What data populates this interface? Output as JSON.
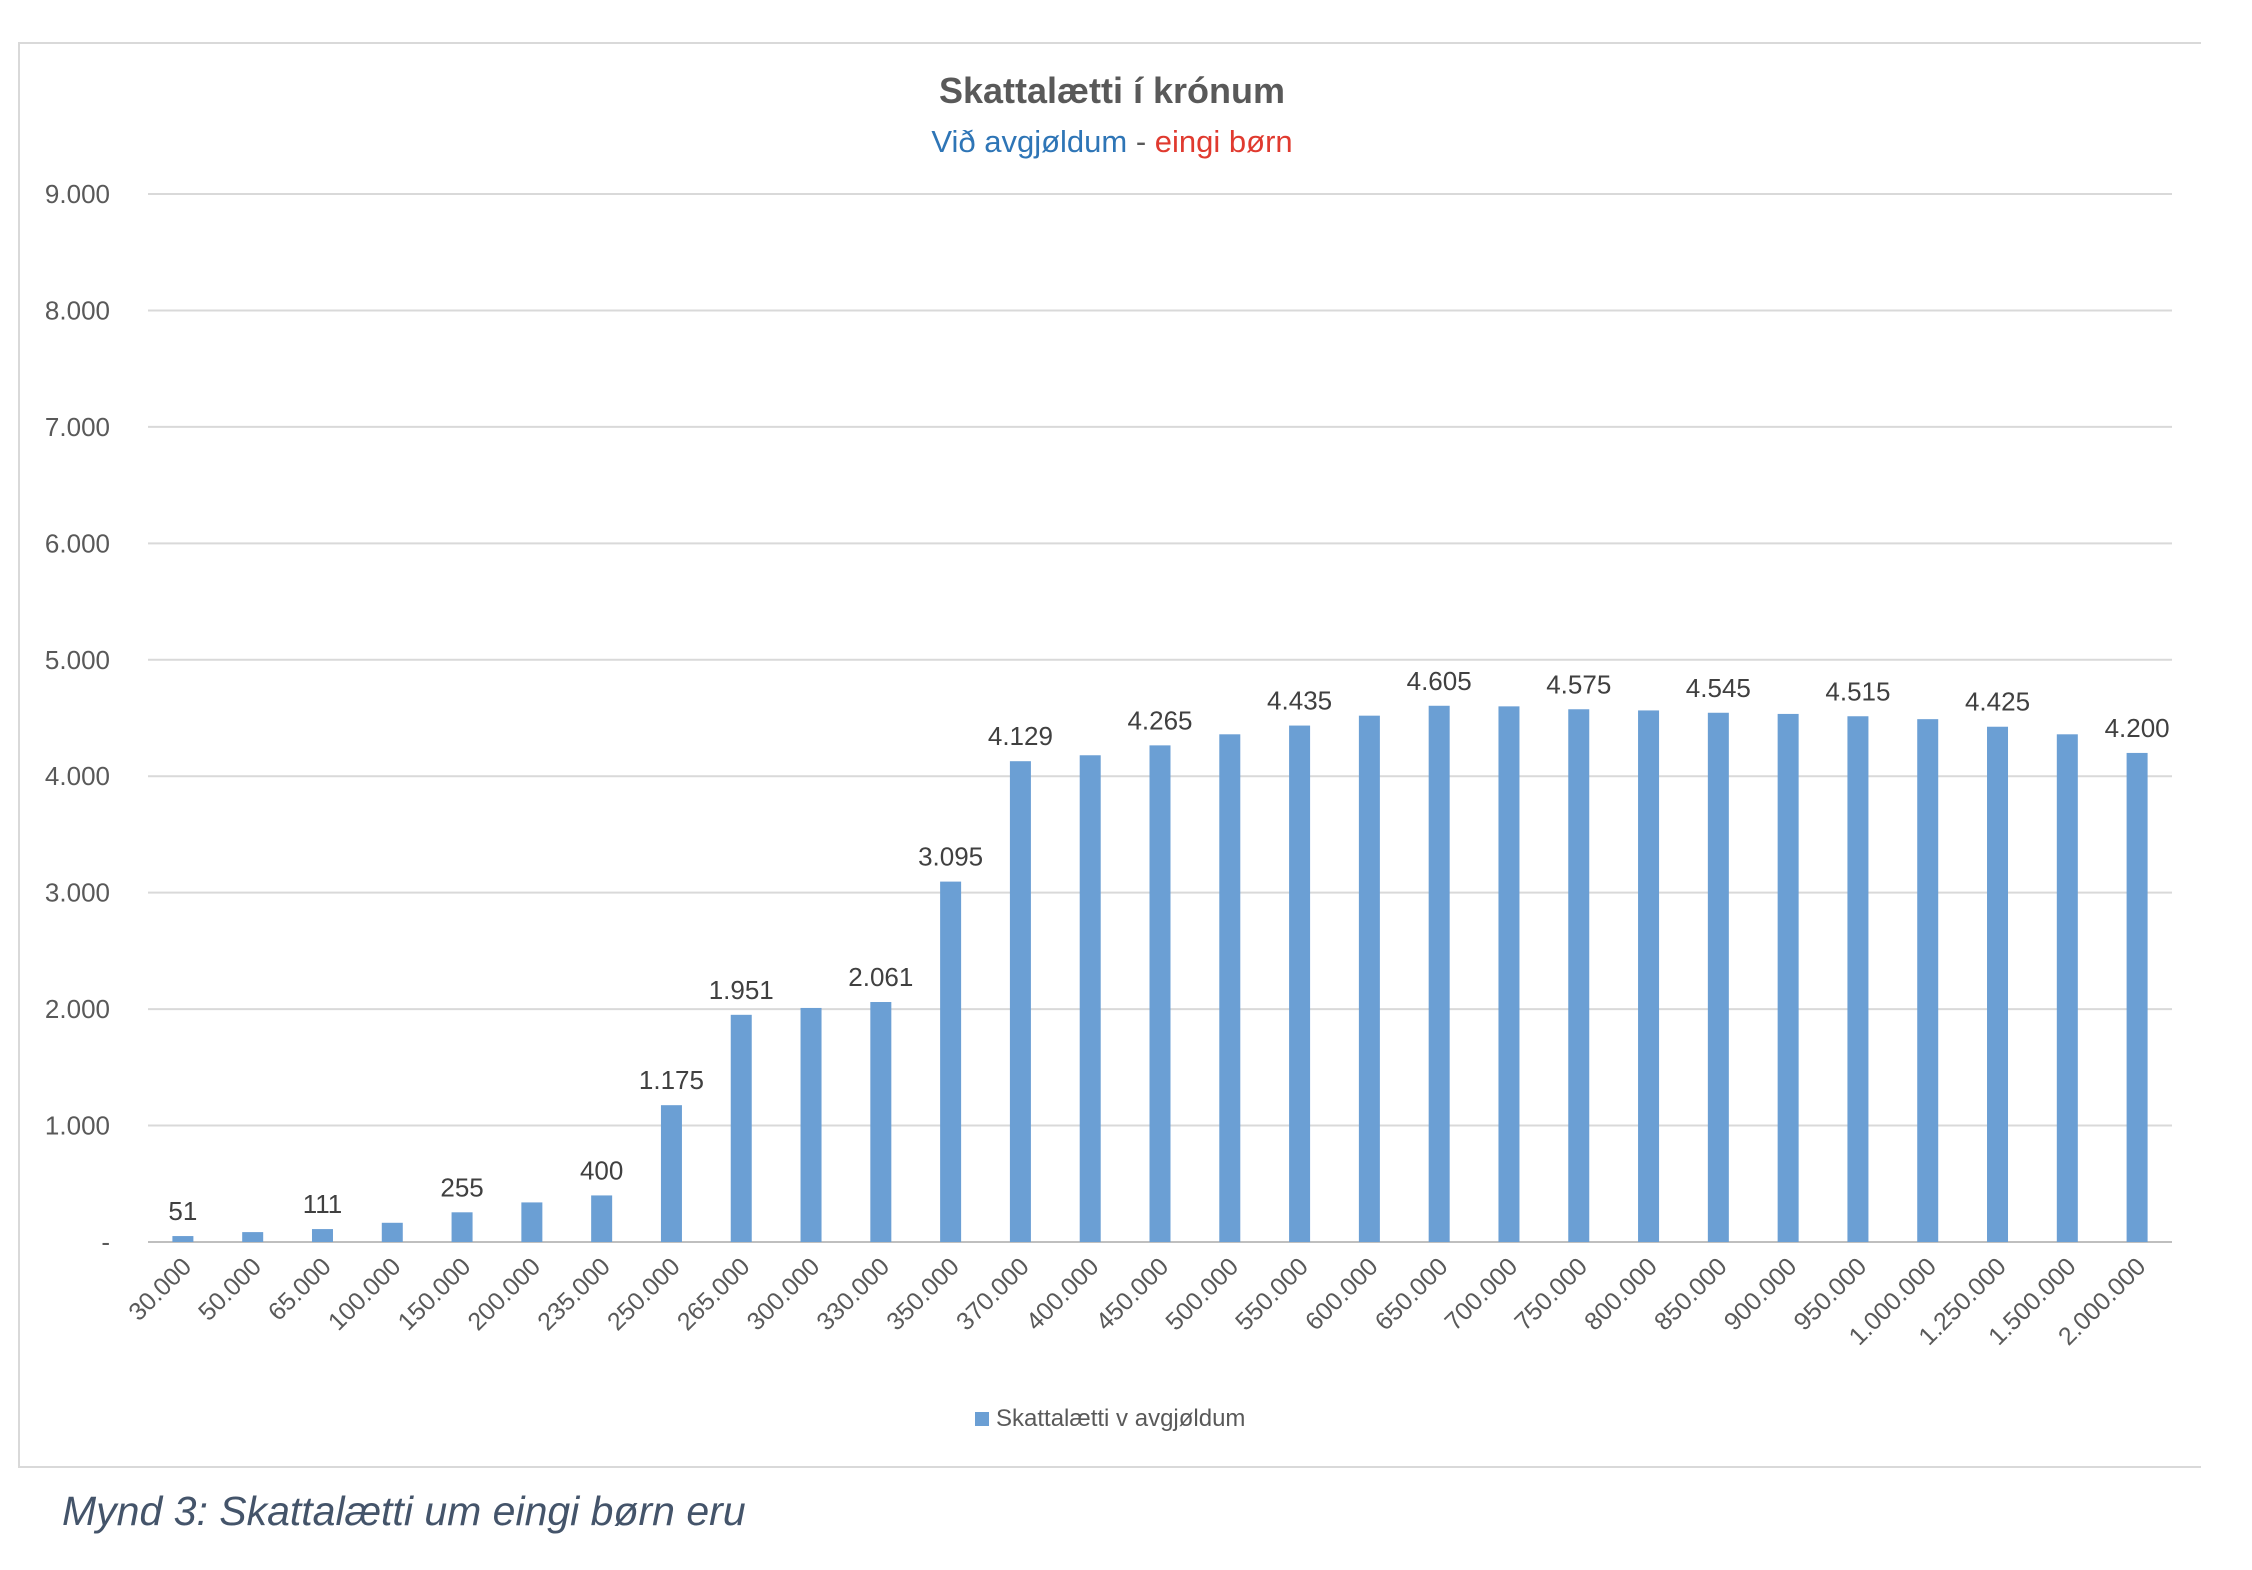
{
  "chart_data": {
    "type": "bar",
    "title": "Skattalætti í krónum",
    "subtitle": {
      "part1": "Við avgjøldum",
      "separator": " - ",
      "part2": "eingi børn",
      "color1": "#2e75b6",
      "separator_color": "#595959",
      "color2": "#e03a2f"
    },
    "categories": [
      "30.000",
      "50.000",
      "65.000",
      "100.000",
      "150.000",
      "200.000",
      "235.000",
      "250.000",
      "265.000",
      "300.000",
      "330.000",
      "350.000",
      "370.000",
      "400.000",
      "450.000",
      "500.000",
      "550.000",
      "600.000",
      "650.000",
      "700.000",
      "750.000",
      "800.000",
      "850.000",
      "900.000",
      "950.000",
      "1.000.000",
      "1.250.000",
      "1.500.000",
      "2.000.000"
    ],
    "series": [
      {
        "name": "Skattalætti v avgjøldum",
        "color": "#6b9fd4",
        "values": [
          51,
          85,
          111,
          165,
          255,
          340,
          400,
          1175,
          1951,
          2010,
          2061,
          3095,
          4129,
          4180,
          4265,
          4360,
          4435,
          4520,
          4605,
          4600,
          4575,
          4565,
          4545,
          4535,
          4515,
          4490,
          4425,
          4360,
          4200
        ],
        "data_labels": [
          "51",
          "",
          "111",
          "",
          "255",
          "",
          "400",
          "1.175",
          "1.951",
          "",
          "2.061",
          "3.095",
          "4.129",
          "",
          "4.265",
          "",
          "4.435",
          "",
          "4.605",
          "",
          "4.575",
          "",
          "4.545",
          "",
          "4.515",
          "",
          "4.425",
          "",
          "4.200"
        ]
      }
    ],
    "ylim": [
      0,
      9000
    ],
    "y_ticks": [
      {
        "value": 0,
        "label": "-"
      },
      {
        "value": 1000,
        "label": "1.000"
      },
      {
        "value": 2000,
        "label": "2.000"
      },
      {
        "value": 3000,
        "label": "3.000"
      },
      {
        "value": 4000,
        "label": "4.000"
      },
      {
        "value": 5000,
        "label": "5.000"
      },
      {
        "value": 6000,
        "label": "6.000"
      },
      {
        "value": 7000,
        "label": "7.000"
      },
      {
        "value": 8000,
        "label": "8.000"
      },
      {
        "value": 9000,
        "label": "9.000"
      }
    ],
    "grid": true,
    "legend_position": "bottom",
    "xlabel": "",
    "ylabel": ""
  },
  "caption": "Mynd 3: Skattalætti um eingi børn eru"
}
